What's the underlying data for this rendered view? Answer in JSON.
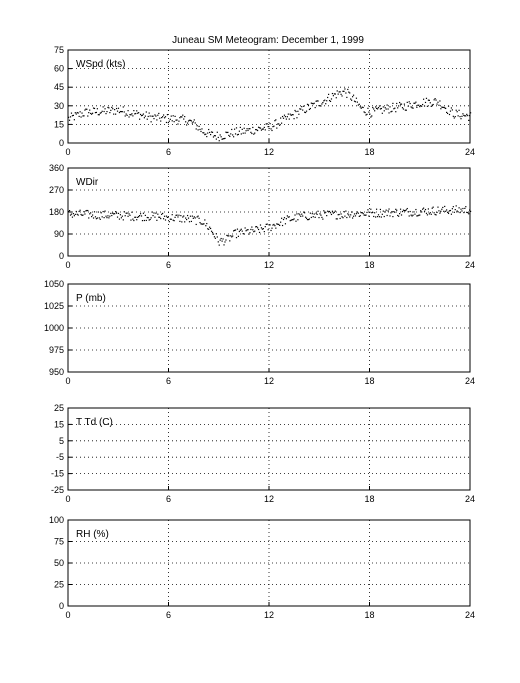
{
  "title": "Juneau SM Meteogram:   December  1, 1999",
  "chart_data": [
    {
      "type": "scatter",
      "label": "WSpd (kts)",
      "xlim": [
        0,
        24
      ],
      "ylim": [
        0,
        75
      ],
      "xticks": [
        "0",
        "6",
        "12",
        "18",
        "24"
      ],
      "yticks": [
        "0",
        "15",
        "30",
        "45",
        "60",
        "75"
      ],
      "grid": true,
      "series": [
        {
          "x": [
            0,
            1,
            2,
            3,
            4,
            5,
            6,
            7,
            7.5,
            8,
            8.5,
            9,
            10,
            11,
            12,
            13,
            14,
            15,
            16,
            16.5,
            17,
            17.5,
            18,
            19,
            20,
            21,
            22,
            23,
            24
          ],
          "y": [
            20,
            25,
            26,
            27,
            24,
            21,
            20,
            19,
            16,
            10,
            7,
            6,
            9,
            11,
            13,
            20,
            27,
            33,
            40,
            42,
            36,
            28,
            25,
            28,
            30,
            33,
            34,
            24,
            22
          ]
        }
      ]
    },
    {
      "type": "scatter",
      "label": "WDir",
      "xlim": [
        0,
        24
      ],
      "ylim": [
        0,
        360
      ],
      "xticks": [
        "0",
        "6",
        "12",
        "18",
        "24"
      ],
      "yticks": [
        "0",
        "90",
        "180",
        "270",
        "360"
      ],
      "grid": true,
      "series": [
        {
          "x": [
            0,
            1,
            2,
            3,
            4,
            5,
            6,
            7,
            8,
            8.5,
            9,
            9.5,
            10,
            11,
            12,
            13,
            14,
            15,
            16,
            17,
            18,
            19,
            20,
            21,
            22,
            23,
            24
          ],
          "y": [
            175,
            172,
            170,
            168,
            165,
            165,
            160,
            155,
            145,
            110,
            60,
            70,
            95,
            105,
            120,
            150,
            165,
            170,
            172,
            175,
            178,
            180,
            182,
            185,
            188,
            190,
            192
          ]
        }
      ]
    },
    {
      "type": "scatter",
      "label": "P (mb)",
      "xlim": [
        0,
        24
      ],
      "ylim": [
        950,
        1050
      ],
      "xticks": [
        "0",
        "6",
        "12",
        "18",
        "24"
      ],
      "yticks": [
        "950",
        "975",
        "1000",
        "1025",
        "1050"
      ],
      "grid": true,
      "series": []
    },
    {
      "type": "scatter",
      "label": "T Td (C)",
      "xlim": [
        0,
        24
      ],
      "ylim": [
        -25,
        25
      ],
      "xticks": [
        "0",
        "6",
        "12",
        "18",
        "24"
      ],
      "yticks": [
        "-25",
        "-15",
        "-5",
        "5",
        "15",
        "25"
      ],
      "grid": true,
      "series": []
    },
    {
      "type": "scatter",
      "label": "RH (%)",
      "xlim": [
        0,
        24
      ],
      "ylim": [
        0,
        100
      ],
      "xticks": [
        "0",
        "6",
        "12",
        "18",
        "24"
      ],
      "yticks": [
        "0",
        "25",
        "50",
        "75",
        "100"
      ],
      "grid": true,
      "series": []
    }
  ]
}
